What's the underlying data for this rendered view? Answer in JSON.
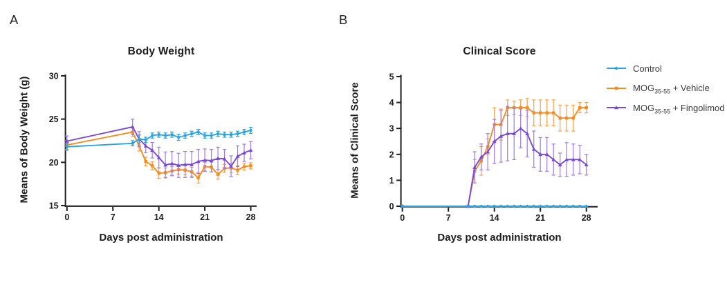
{
  "panels": [
    {
      "letter": "A"
    },
    {
      "letter": "B"
    }
  ],
  "colors": {
    "background": "#ffffff",
    "axis_text": "#1d1d1f",
    "control": "#2ba3e2",
    "vehicle": "#f68b1f",
    "fingolimod": "#7a48d5",
    "control_err": "#2ba3e2",
    "vehicle_err": "#f9a250",
    "fingolimod_err": "#a07ee8"
  },
  "legend": {
    "position": "right-of-chart-b",
    "items": [
      {
        "label": "Control",
        "prefix": "Control",
        "sub": "",
        "suffix": "",
        "series_key": "control",
        "marker": "circle"
      },
      {
        "label": "MOG35-55 + Vehicle",
        "prefix": "MOG",
        "sub": "35-55",
        "suffix": " + Vehicle",
        "series_key": "vehicle",
        "marker": "square"
      },
      {
        "label": "MOG35-55 + Fingolimod",
        "prefix": "MOG",
        "sub": "35-55",
        "suffix": " + Fingolimod",
        "series_key": "fingolimod",
        "marker": "triangle"
      }
    ]
  },
  "chart_data": [
    {
      "id": "body-weight",
      "panel": "A",
      "type": "line",
      "title": "Body Weight",
      "xlabel": "Days post administration",
      "ylabel": "Means of Body Weight (g)",
      "grid": false,
      "error_bars": true,
      "x": [
        0,
        10,
        11,
        12,
        13,
        14,
        15,
        16,
        17,
        18,
        19,
        20,
        21,
        22,
        23,
        24,
        25,
        26,
        27,
        28
      ],
      "xticks": [
        0,
        7,
        14,
        21,
        28
      ],
      "xlim": [
        0,
        29
      ],
      "ylim": [
        15,
        30
      ],
      "yticks": [
        15,
        20,
        25,
        30
      ],
      "series": [
        {
          "name": "Control",
          "series_key": "control",
          "marker": "circle",
          "zorder": 3,
          "values": [
            21.8,
            22.2,
            22.7,
            22.6,
            23.1,
            23.2,
            23.1,
            23.2,
            22.9,
            23.1,
            23.3,
            23.5,
            23.1,
            23.1,
            23.3,
            23.2,
            23.2,
            23.3,
            23.5,
            23.7
          ],
          "errors": [
            0.4,
            0.3,
            0.45,
            0.3,
            0.3,
            0.3,
            0.3,
            0.3,
            0.35,
            0.3,
            0.3,
            0.3,
            0.3,
            0.3,
            0.3,
            0.3,
            0.3,
            0.3,
            0.3,
            0.35
          ]
        },
        {
          "name": "MOG35-55 + Vehicle",
          "series_key": "vehicle",
          "marker": "square",
          "zorder": 1,
          "values": [
            22.0,
            23.5,
            21.9,
            20.1,
            19.6,
            18.75,
            18.8,
            19.0,
            19.15,
            19.1,
            18.9,
            18.2,
            19.5,
            19.45,
            18.6,
            19.3,
            19.35,
            19.1,
            19.5,
            19.6
          ],
          "errors": [
            0.5,
            0.5,
            0.6,
            0.5,
            0.45,
            0.6,
            0.55,
            0.5,
            0.5,
            0.55,
            0.5,
            0.6,
            0.5,
            0.55,
            0.55,
            0.45,
            0.5,
            0.5,
            0.4,
            0.35
          ]
        },
        {
          "name": "MOG35-55 + Fingolimod",
          "series_key": "fingolimod",
          "marker": "triangle",
          "zorder": 2,
          "values": [
            22.45,
            24.1,
            22.7,
            21.9,
            21.4,
            20.55,
            19.7,
            19.85,
            19.65,
            19.75,
            19.75,
            20.1,
            20.25,
            20.2,
            20.45,
            20.4,
            19.55,
            20.7,
            21.1,
            21.4
          ],
          "errors": [
            0.6,
            0.9,
            0.85,
            0.8,
            0.9,
            1.2,
            1.5,
            1.4,
            1.4,
            1.5,
            1.5,
            1.4,
            1.3,
            1.3,
            1.3,
            1.1,
            1.2,
            1.2,
            1.0,
            1.0
          ]
        }
      ]
    },
    {
      "id": "clinical-score",
      "panel": "B",
      "type": "line",
      "title": "Clinical Score",
      "xlabel": "Days post administration",
      "ylabel": "Means of Clinical Score",
      "grid": false,
      "error_bars": true,
      "x": [
        0,
        10,
        11,
        12,
        13,
        14,
        15,
        16,
        17,
        18,
        19,
        20,
        21,
        22,
        23,
        24,
        25,
        26,
        27,
        28
      ],
      "xticks": [
        0,
        7,
        14,
        21,
        28
      ],
      "xlim": [
        0,
        29
      ],
      "ylim": [
        0,
        5
      ],
      "yticks": [
        0,
        1,
        2,
        3,
        4,
        5
      ],
      "series": [
        {
          "name": "Control",
          "series_key": "control",
          "marker": "circle",
          "zorder": 3,
          "values": [
            0,
            0,
            0,
            0,
            0,
            0,
            0,
            0,
            0,
            0,
            0,
            0,
            0,
            0,
            0,
            0,
            0,
            0,
            0,
            0
          ],
          "errors": [
            0,
            0,
            0,
            0,
            0,
            0,
            0,
            0,
            0,
            0,
            0,
            0,
            0,
            0,
            0,
            0,
            0,
            0,
            0,
            0
          ]
        },
        {
          "name": "MOG35-55 + Vehicle",
          "series_key": "vehicle",
          "marker": "square",
          "zorder": 1,
          "values": [
            0,
            0,
            1.35,
            1.75,
            2.3,
            3.15,
            3.15,
            3.8,
            3.8,
            3.8,
            3.8,
            3.6,
            3.6,
            3.6,
            3.6,
            3.4,
            3.4,
            3.4,
            3.8,
            3.8
          ],
          "errors": [
            0,
            0,
            0.45,
            0.55,
            0.3,
            0.65,
            0.6,
            0.3,
            0.25,
            0.3,
            0.35,
            0.5,
            0.5,
            0.5,
            0.5,
            0.5,
            0.5,
            0.5,
            0.2,
            0.2
          ]
        },
        {
          "name": "MOG35-55 + Fingolimod",
          "series_key": "fingolimod",
          "marker": "triangle",
          "zorder": 2,
          "values": [
            0,
            0,
            1.5,
            1.9,
            2.1,
            2.5,
            2.7,
            2.8,
            2.8,
            3.0,
            2.8,
            2.2,
            2.0,
            2.0,
            1.8,
            1.6,
            1.8,
            1.8,
            1.8,
            1.6
          ],
          "errors": [
            0,
            0,
            0.6,
            0.5,
            0.7,
            0.85,
            1.0,
            1.05,
            1.0,
            0.75,
            0.9,
            0.7,
            0.65,
            0.65,
            0.6,
            0.45,
            0.65,
            0.6,
            0.55,
            0.4
          ]
        }
      ]
    }
  ]
}
